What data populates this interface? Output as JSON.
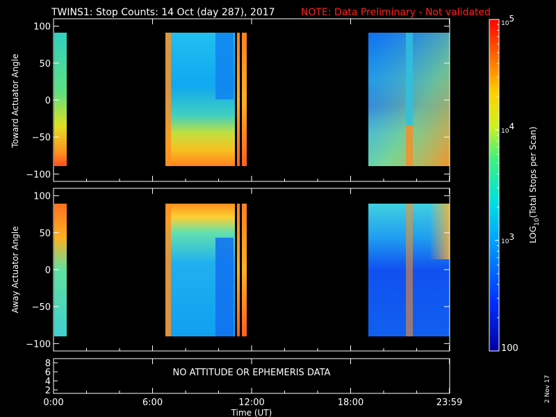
{
  "header": {
    "title": "TWINS1: Stop Counts: 14 Oct (day 287), 2017",
    "note": "NOTE: Data Preliminary - Not validated",
    "note_color": "#ff2020"
  },
  "footer": {
    "date_stamp": "2 Nov 17"
  },
  "attitude_panel": {
    "message": "NO ATTITUDE OR EPHEMERIS DATA",
    "yticks": [
      "8",
      "6",
      "4",
      "2"
    ]
  },
  "chart_data": [
    {
      "type": "heatmap",
      "ylabel": "Toward Actuator Angle",
      "ylim": [
        -110,
        110
      ],
      "yticks": [
        100,
        50,
        0,
        -50,
        -100
      ],
      "ytick_labels": [
        "100",
        "50",
        "0",
        "−50",
        "−100"
      ],
      "xlim": [
        0,
        24
      ],
      "data_blocks": [
        {
          "t_start": 0.0,
          "t_end": 0.5,
          "description": "greenish/cyan, yellow-red near bottom"
        },
        {
          "t_start": 6.9,
          "t_end": 11.0,
          "description": "cyan/blue, yellow-orange at negative angles"
        },
        {
          "t_start": 11.1,
          "t_end": 11.6,
          "description": "orange/yellow"
        },
        {
          "t_start": 19.0,
          "t_end": 24.0,
          "description": "blue, orange/yellow at bottom right"
        }
      ]
    },
    {
      "type": "heatmap",
      "ylabel": "Away Actuator Angle",
      "xlabel": "Time (UT)",
      "ylim": [
        -110,
        110
      ],
      "yticks": [
        100,
        50,
        0,
        -50,
        -100
      ],
      "ytick_labels": [
        "100",
        "50",
        "0",
        "−50",
        "−100"
      ],
      "xlim": [
        0,
        24
      ],
      "xticks": [
        0,
        6,
        12,
        18,
        23.98
      ],
      "xtick_labels": [
        "0:00",
        "6:00",
        "12:00",
        "18:00",
        "23:59"
      ],
      "colorbar": {
        "label": "LOG",
        "label_sub": "10",
        "label_rest": "(Total Stops per Scan)",
        "scale": "log",
        "range": [
          100,
          100000
        ],
        "tick_labels": [
          {
            "value": 100000,
            "base": "10",
            "exp": "5"
          },
          {
            "value": 10000,
            "base": "10",
            "exp": "4"
          },
          {
            "value": 1000,
            "base": "10",
            "exp": "3"
          },
          {
            "value": 100,
            "base": "100",
            "exp": ""
          }
        ]
      }
    }
  ]
}
